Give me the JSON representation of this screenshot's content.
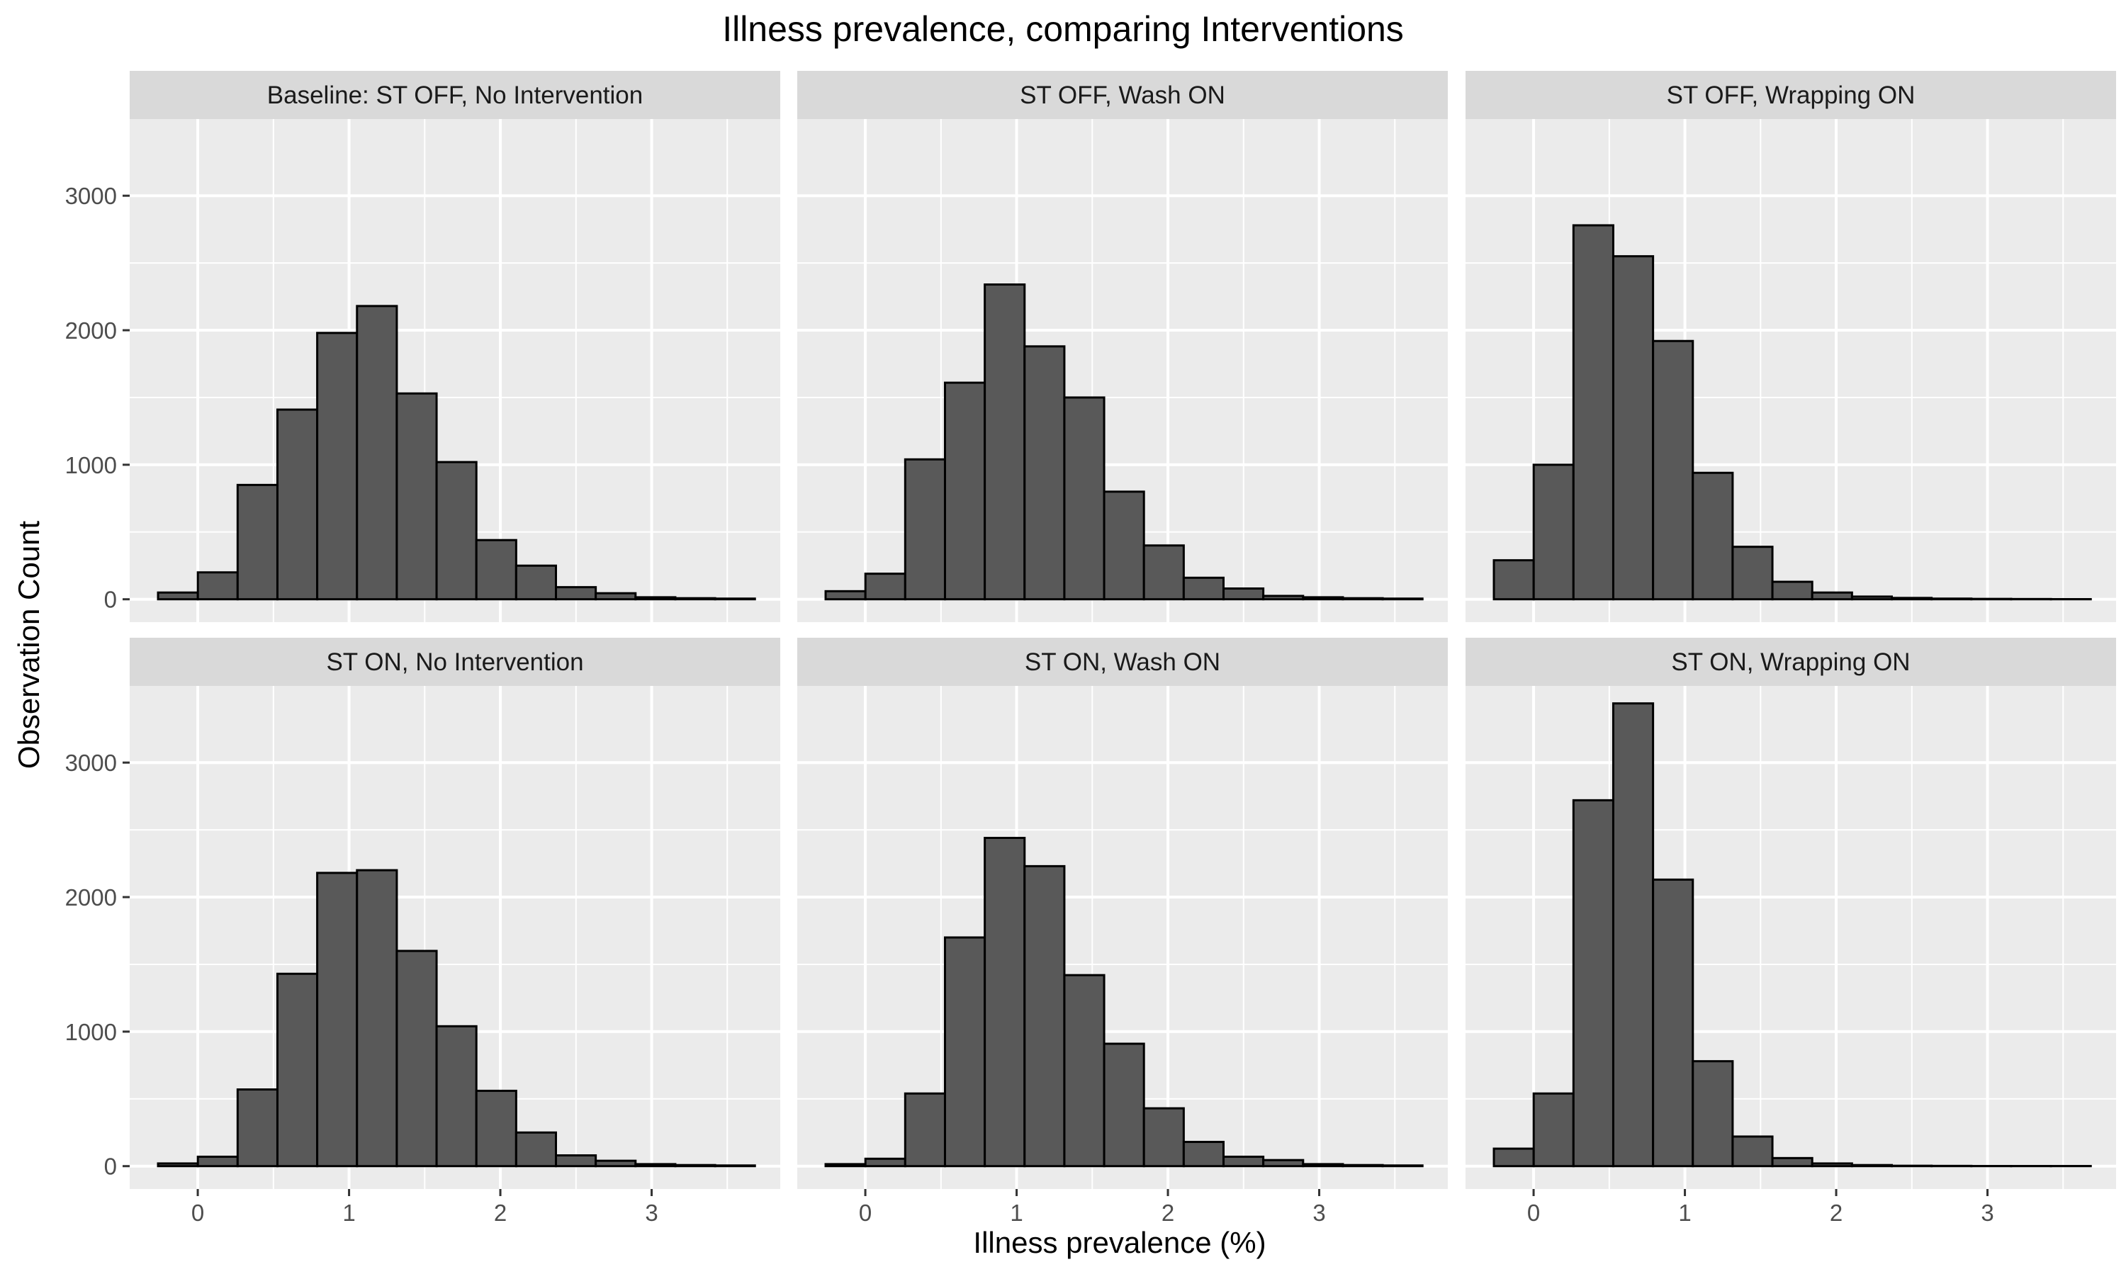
{
  "chart_data": {
    "type": "bar",
    "title": "Illness prevalence, comparing Interventions",
    "xlabel": "Illness prevalence (%)",
    "ylabel": "Observation Count",
    "xlim": [
      -0.45,
      3.85
    ],
    "ylim": [
      -170,
      3570
    ],
    "x_ticks": [
      "0",
      "1",
      "2",
      "3"
    ],
    "y_ticks": [
      "0",
      "1000",
      "2000",
      "3000"
    ],
    "bin_width": 0.263,
    "bin_centers": [
      -0.131,
      0.132,
      0.395,
      0.658,
      0.921,
      1.184,
      1.447,
      1.71,
      1.973,
      2.236,
      2.499,
      2.762,
      3.025,
      3.288,
      3.551
    ],
    "grid": true,
    "legend": "none",
    "colors": {
      "bar_fill": "#595959",
      "bar_stroke": "#000000",
      "panel_bg": "#ebebeb",
      "strip_bg": "#d9d9d9",
      "grid": "#ffffff"
    },
    "panels": [
      {
        "label": "Baseline: ST OFF, No Intervention",
        "values": [
          50,
          200,
          850,
          1410,
          1980,
          2180,
          1530,
          1020,
          440,
          250,
          90,
          45,
          15,
          8,
          5
        ]
      },
      {
        "label": "ST OFF, Wash ON",
        "values": [
          60,
          190,
          1040,
          1610,
          2340,
          1880,
          1500,
          800,
          400,
          160,
          80,
          25,
          15,
          8,
          5
        ]
      },
      {
        "label": "ST OFF, Wrapping ON",
        "values": [
          290,
          1000,
          2780,
          2550,
          1920,
          940,
          390,
          130,
          50,
          20,
          10,
          5,
          3,
          2,
          1
        ]
      },
      {
        "label": "ST ON, No Intervention",
        "values": [
          20,
          70,
          570,
          1430,
          2180,
          2200,
          1600,
          1040,
          560,
          250,
          80,
          40,
          15,
          8,
          5
        ]
      },
      {
        "label": "ST ON, Wash ON",
        "values": [
          15,
          55,
          540,
          1700,
          2440,
          2230,
          1420,
          910,
          430,
          180,
          70,
          45,
          15,
          8,
          5
        ]
      },
      {
        "label": "ST ON, Wrapping ON",
        "values": [
          130,
          540,
          2720,
          3440,
          2130,
          780,
          220,
          60,
          20,
          8,
          3,
          2,
          1,
          1,
          1
        ]
      }
    ]
  }
}
